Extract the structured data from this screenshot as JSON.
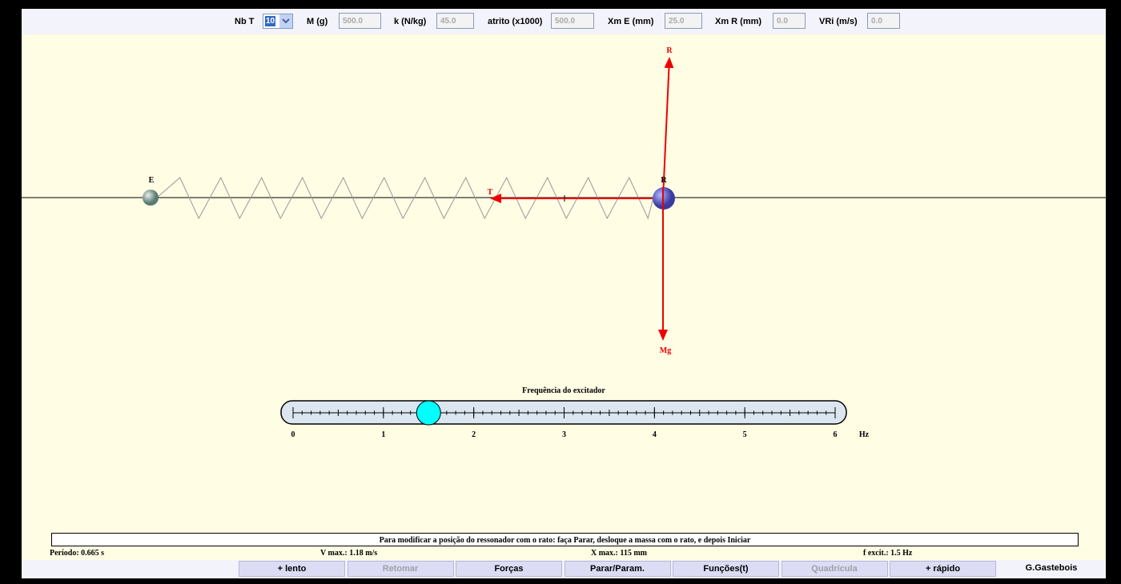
{
  "toolbar": {
    "fields": [
      {
        "label": "Nb T",
        "value": "10",
        "kind": "select"
      },
      {
        "label": "M (g)",
        "value": "500.0",
        "kind": "input"
      },
      {
        "label": "k (N/kg)",
        "value": "45.0",
        "kind": "input"
      },
      {
        "label": "atrito (x1000)",
        "value": "500.0",
        "kind": "input"
      },
      {
        "label": "Xm E (mm)",
        "value": "25.0",
        "kind": "input"
      },
      {
        "label": "Xm R (mm)",
        "value": "0.0",
        "kind": "input"
      },
      {
        "label": "VRi (m/s)",
        "value": "0.0",
        "kind": "input"
      }
    ]
  },
  "scene": {
    "exciter_label": "E",
    "reaction_label": "R",
    "resonator_label": "R",
    "tension_label": "T",
    "weight_label": "Mg"
  },
  "slider": {
    "title": "Frequência do excitador",
    "range": [
      0,
      6
    ],
    "ticks": [
      0,
      1,
      2,
      3,
      4,
      5,
      6
    ],
    "unit": "Hz",
    "value": 1.5
  },
  "message": "Para modificar a posição do ressonador com o rato: faça Parar, desloque a massa com o rato, e depois Iniciar",
  "status": [
    "Período: 0.665 s",
    "V max.: 1.18 m/s",
    "X max.: 115 mm",
    "f excit.: 1.5 Hz"
  ],
  "buttons": [
    {
      "label": "+ lento",
      "enabled": true
    },
    {
      "label": "Retomar",
      "enabled": false
    },
    {
      "label": "Forças",
      "enabled": true
    },
    {
      "label": "Parar/Param.",
      "enabled": true
    },
    {
      "label": "Funções(t)",
      "enabled": true
    },
    {
      "label": "Quadrícula",
      "enabled": false
    },
    {
      "label": "+ rápido",
      "enabled": true
    }
  ],
  "author": "G.Gastebois"
}
